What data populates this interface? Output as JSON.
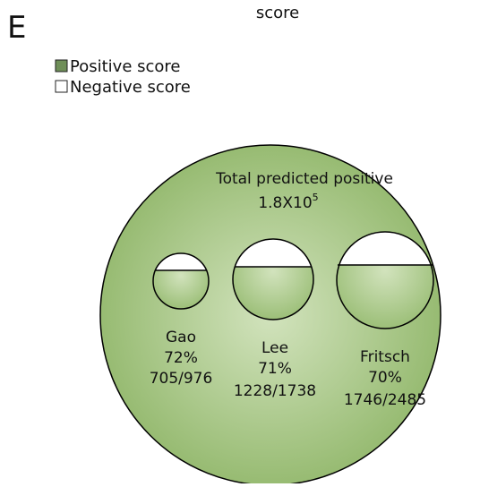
{
  "panel_letter": "E",
  "title": "score",
  "legend": [
    {
      "label": "Positive score"
    },
    {
      "label": "Negative score"
    }
  ],
  "total": {
    "label": "Total predicted positive",
    "value": "1.8X10",
    "exponent": "5"
  },
  "groups": [
    {
      "name": "Gao",
      "percent": "72%",
      "counts": "705/976"
    },
    {
      "name": "Lee",
      "percent": "71%",
      "counts": "1228/1738"
    },
    {
      "name": "Fritsch",
      "percent": "70%",
      "counts": "1746/2485"
    }
  ]
}
